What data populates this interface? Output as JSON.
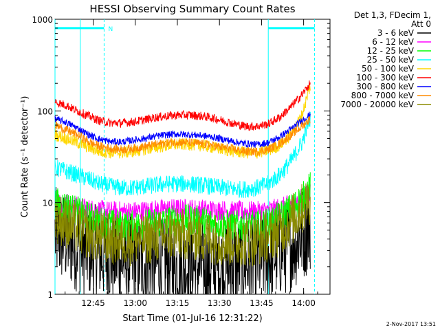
{
  "chart_data": {
    "type": "line",
    "title": "HESSI Observing Summary Count Rates",
    "xlabel": "Start Time (01-Jul-16 12:31:22)",
    "ylabel": "Count Rate (s⁻¹ detector⁻¹)",
    "x_unit": "minutes after 12:31:22",
    "xlim": [
      0,
      98
    ],
    "ylim": [
      1,
      1000
    ],
    "yscale": "log",
    "x_ticks": [
      {
        "label": "12:45",
        "value": 13.6
      },
      {
        "label": "13:00",
        "value": 28.6
      },
      {
        "label": "13:15",
        "value": 43.6
      },
      {
        "label": "13:30",
        "value": 58.6
      },
      {
        "label": "13:45",
        "value": 73.6
      },
      {
        "label": "14:00",
        "value": 88.6
      }
    ],
    "y_ticks": [
      {
        "label": "1",
        "value": 1
      },
      {
        "label": "10",
        "value": 10
      },
      {
        "label": "100",
        "value": 100
      },
      {
        "label": "1000",
        "value": 1000
      }
    ],
    "legend_header": [
      "Det 1,3, FDecim 1,",
      "Att 0"
    ],
    "legend_position": "right",
    "grid": false,
    "series": [
      {
        "name": "3 - 6 keV",
        "color": "#000000",
        "x": [
          0,
          4,
          8,
          12,
          16,
          20,
          24,
          28,
          32,
          36,
          40,
          44,
          48,
          52,
          56,
          60,
          64,
          68,
          72,
          76,
          80,
          84,
          88,
          91
        ],
        "values": [
          4.5,
          4,
          3.5,
          3,
          2.8,
          2.6,
          2.4,
          2.3,
          2.2,
          2.1,
          2.1,
          2,
          2,
          2,
          2,
          2,
          2.1,
          2.2,
          2.3,
          2.6,
          3,
          3.5,
          4.5,
          6
        ]
      },
      {
        "name": "6 - 12 keV",
        "color": "#ff00ff",
        "x": [
          0,
          4,
          8,
          12,
          16,
          20,
          24,
          28,
          32,
          36,
          40,
          44,
          48,
          52,
          56,
          60,
          64,
          68,
          72,
          76,
          80,
          84,
          88,
          91
        ],
        "values": [
          10,
          9.5,
          9,
          8.5,
          8.2,
          8,
          8,
          8,
          8.1,
          8.3,
          8.5,
          8.5,
          8.5,
          8.4,
          8.3,
          8.2,
          8,
          8,
          8,
          8.2,
          8.7,
          9.5,
          11,
          13
        ]
      },
      {
        "name": "12 - 25 keV",
        "color": "#00ff00",
        "x": [
          0,
          4,
          8,
          12,
          16,
          20,
          24,
          28,
          32,
          36,
          40,
          44,
          48,
          52,
          56,
          60,
          64,
          68,
          72,
          76,
          80,
          84,
          88,
          91
        ],
        "values": [
          10,
          9,
          8,
          7,
          6.2,
          5.8,
          5.6,
          5.6,
          5.8,
          6,
          6.3,
          6.5,
          6.5,
          6.3,
          6,
          5.8,
          5.6,
          5.5,
          5.6,
          6,
          7,
          8.5,
          11,
          15
        ]
      },
      {
        "name": "25 - 50 keV",
        "color": "#00ffff",
        "x": [
          0,
          4,
          8,
          12,
          16,
          20,
          24,
          28,
          32,
          36,
          40,
          44,
          48,
          52,
          56,
          60,
          64,
          68,
          72,
          76,
          80,
          84,
          88,
          91
        ],
        "values": [
          24,
          22,
          20,
          18,
          16,
          15,
          14.5,
          14.5,
          15,
          15.5,
          16,
          16,
          16,
          15.5,
          15,
          14.5,
          14,
          14,
          14.5,
          16,
          20,
          28,
          45,
          85
        ]
      },
      {
        "name": "50 - 100 keV",
        "color": "#ffd700",
        "x": [
          0,
          4,
          8,
          12,
          16,
          20,
          24,
          28,
          32,
          36,
          40,
          44,
          48,
          52,
          56,
          60,
          64,
          68,
          72,
          76,
          80,
          84,
          88,
          91
        ],
        "values": [
          55,
          50,
          45,
          40,
          36,
          35,
          35,
          36,
          38,
          40,
          42,
          43,
          43,
          42,
          40,
          38,
          36,
          35,
          35,
          37,
          42,
          55,
          90,
          190
        ]
      },
      {
        "name": "100 - 300 keV",
        "color": "#ff0000",
        "x": [
          0,
          4,
          8,
          12,
          16,
          20,
          24,
          28,
          32,
          36,
          40,
          44,
          48,
          52,
          56,
          60,
          64,
          68,
          72,
          76,
          80,
          84,
          88,
          91
        ],
        "values": [
          125,
          115,
          100,
          88,
          78,
          74,
          74,
          76,
          80,
          85,
          88,
          90,
          90,
          88,
          84,
          78,
          72,
          68,
          68,
          72,
          85,
          110,
          150,
          200
        ]
      },
      {
        "name": "300 - 800 keV",
        "color": "#0000ff",
        "x": [
          0,
          4,
          8,
          12,
          16,
          20,
          24,
          28,
          32,
          36,
          40,
          44,
          48,
          52,
          56,
          60,
          64,
          68,
          72,
          76,
          80,
          84,
          88,
          91
        ],
        "values": [
          82,
          75,
          65,
          55,
          49,
          46,
          46,
          48,
          50,
          53,
          55,
          56,
          55,
          54,
          52,
          49,
          46,
          44,
          43,
          45,
          52,
          63,
          78,
          92
        ]
      },
      {
        "name": "800 - 7000 keV",
        "color": "#ff8c00",
        "x": [
          0,
          4,
          8,
          12,
          16,
          20,
          24,
          28,
          32,
          36,
          40,
          44,
          48,
          52,
          56,
          60,
          64,
          68,
          72,
          76,
          80,
          84,
          88,
          91
        ],
        "values": [
          70,
          62,
          55,
          46,
          41,
          39,
          38,
          39,
          41,
          43,
          45,
          46,
          45,
          44,
          42,
          40,
          38,
          36,
          36,
          38,
          44,
          54,
          68,
          82
        ]
      },
      {
        "name": "7000 - 20000 keV",
        "color": "#8b8b00",
        "x": [
          0,
          4,
          8,
          12,
          16,
          20,
          24,
          28,
          32,
          36,
          40,
          44,
          48,
          52,
          56,
          60,
          64,
          68,
          72,
          76,
          80,
          84,
          88,
          91
        ],
        "values": [
          7,
          6,
          5.2,
          4.6,
          4.2,
          4,
          3.9,
          3.9,
          4,
          4.2,
          4.4,
          4.5,
          4.5,
          4.3,
          4.1,
          3.9,
          3.8,
          3.8,
          3.9,
          4.3,
          5,
          6.3,
          8.5,
          11
        ]
      }
    ],
    "annotations": [
      {
        "type": "vline",
        "x": 0,
        "style": "solid",
        "color": "#00ffff"
      },
      {
        "type": "vline",
        "x": 17.5,
        "style": "dashed",
        "color": "#00ffff"
      },
      {
        "type": "vline",
        "x": 76,
        "style": "solid",
        "color": "#00ffff"
      },
      {
        "type": "vline",
        "x": 92.5,
        "style": "dashed",
        "color": "#00ffff"
      },
      {
        "type": "vline",
        "x": 9,
        "style": "solid",
        "color": "#00ffff"
      },
      {
        "type": "bar",
        "x_start": 0,
        "x_end": 17.5,
        "y": 800,
        "color": "#00ffff",
        "label": ""
      },
      {
        "type": "bar",
        "x_start": 76,
        "x_end": 92.5,
        "y": 800,
        "color": "#00ffff",
        "label": ""
      },
      {
        "type": "text",
        "x": 19,
        "y": 800,
        "label": "N",
        "color": "#00ffff"
      }
    ]
  },
  "footer": {
    "date": "2-Nov-2017 13:51"
  }
}
